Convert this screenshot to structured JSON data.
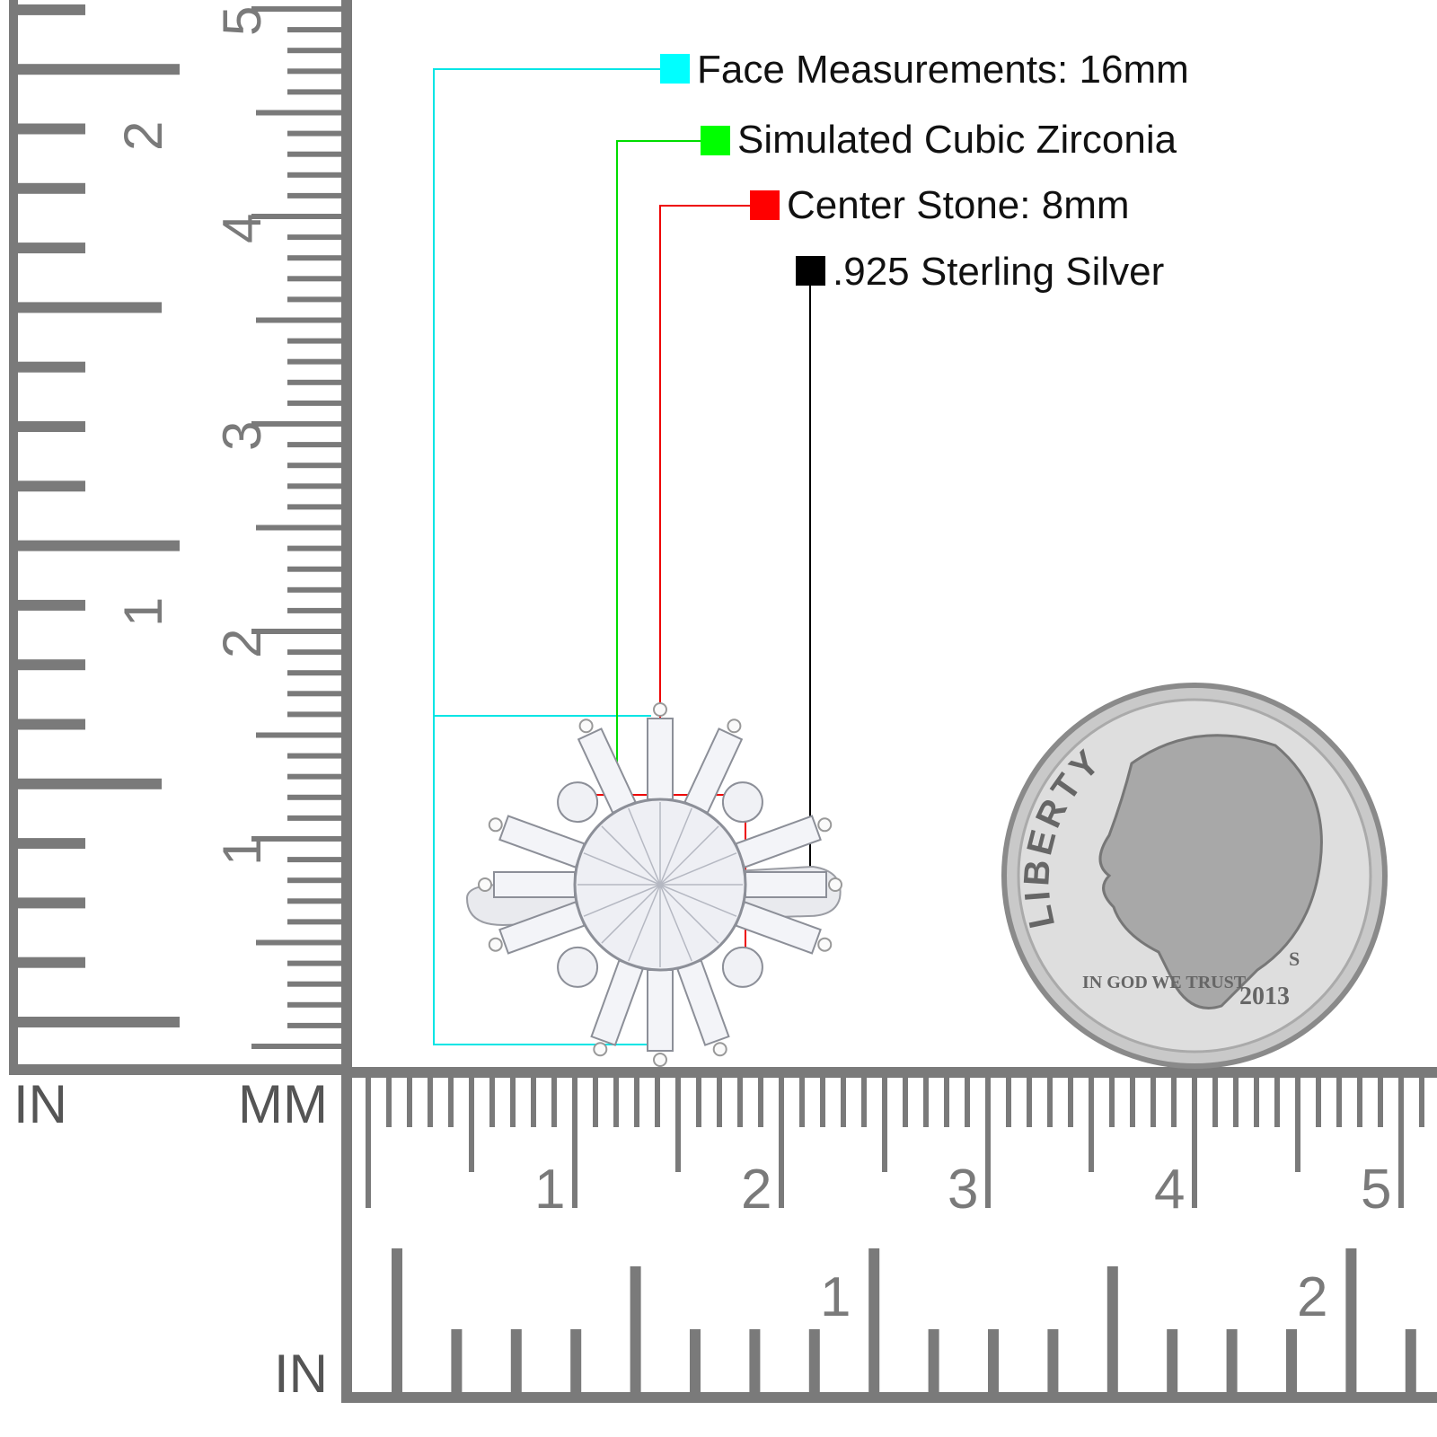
{
  "legend": [
    {
      "label": "Face Measurements: 16mm",
      "color": "#00ffff"
    },
    {
      "label": "Simulated Cubic Zirconia",
      "color": "#00ff00"
    },
    {
      "label": "Center Stone: 8mm",
      "color": "#ff0000"
    },
    {
      "label": ".925 Sterling Silver",
      "color": "#000000"
    }
  ],
  "rulers": {
    "corner_left_unit": "IN",
    "corner_right_unit": "MM",
    "bottom_unit": "IN",
    "vertical_mm_labels": [
      "1",
      "2",
      "3",
      "4",
      "5"
    ],
    "vertical_in_labels": [
      "1",
      "2"
    ],
    "horizontal_mm_labels": [
      "1",
      "2",
      "3",
      "4",
      "5"
    ],
    "horizontal_in_labels": [
      "1",
      "2"
    ],
    "color": "#7a7a7a"
  },
  "coin": {
    "top_text": "LIBERTY",
    "motto": "IN GOD WE TRUST",
    "mint_mark": "S",
    "year": "2013"
  }
}
